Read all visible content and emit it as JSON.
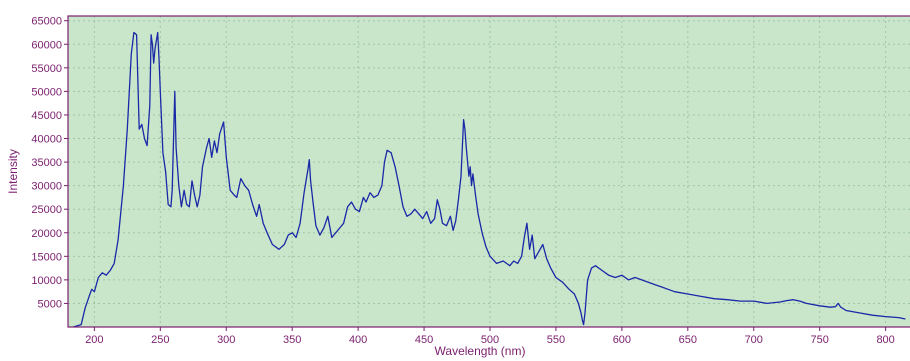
{
  "chart_data": {
    "type": "line",
    "title": "",
    "xlabel": "Wavelength (nm)",
    "ylabel": "Intensity",
    "xlim": [
      180,
      820
    ],
    "ylim": [
      0,
      66000
    ],
    "grid": true,
    "x_ticks": [
      200,
      250,
      300,
      350,
      400,
      450,
      500,
      550,
      600,
      650,
      700,
      750,
      800
    ],
    "y_ticks": [
      5000,
      10000,
      15000,
      20000,
      25000,
      30000,
      35000,
      40000,
      45000,
      50000,
      55000,
      60000,
      65000
    ],
    "colors": {
      "background": "#ffffff",
      "plot_area": "#c9e6ca",
      "frame": "#7a1f6e",
      "tick_text": "#7a1f6e",
      "grid": "#9fc6a6",
      "line": "#1a28a8"
    },
    "series": [
      {
        "values": [
          [
            184,
            0
          ],
          [
            190,
            500
          ],
          [
            193,
            4000
          ],
          [
            196,
            6500
          ],
          [
            198,
            8000
          ],
          [
            200,
            7500
          ],
          [
            203,
            10500
          ],
          [
            206,
            11500
          ],
          [
            209,
            11000
          ],
          [
            212,
            12000
          ],
          [
            215,
            13500
          ],
          [
            218,
            18500
          ],
          [
            222,
            30000
          ],
          [
            225,
            42000
          ],
          [
            228,
            58000
          ],
          [
            230,
            62500
          ],
          [
            232,
            62000
          ],
          [
            234,
            42000
          ],
          [
            236,
            43000
          ],
          [
            238,
            40000
          ],
          [
            240,
            38500
          ],
          [
            242,
            47000
          ],
          [
            243,
            62000
          ],
          [
            244,
            60000
          ],
          [
            245,
            56000
          ],
          [
            246,
            59000
          ],
          [
            248,
            62500
          ],
          [
            249,
            57000
          ],
          [
            250,
            50000
          ],
          [
            252,
            37000
          ],
          [
            254,
            33000
          ],
          [
            256,
            26000
          ],
          [
            258,
            25500
          ],
          [
            259,
            29000
          ],
          [
            261,
            50000
          ],
          [
            262,
            38000
          ],
          [
            264,
            30000
          ],
          [
            266,
            25500
          ],
          [
            268,
            29000
          ],
          [
            270,
            26000
          ],
          [
            272,
            25500
          ],
          [
            274,
            31000
          ],
          [
            276,
            28000
          ],
          [
            278,
            25500
          ],
          [
            280,
            28000
          ],
          [
            282,
            34000
          ],
          [
            285,
            38000
          ],
          [
            287,
            40000
          ],
          [
            289,
            36000
          ],
          [
            291,
            39500
          ],
          [
            293,
            37000
          ],
          [
            295,
            41000
          ],
          [
            298,
            43500
          ],
          [
            300,
            36000
          ],
          [
            303,
            29000
          ],
          [
            306,
            28000
          ],
          [
            308,
            27500
          ],
          [
            311,
            31500
          ],
          [
            314,
            30000
          ],
          [
            317,
            29000
          ],
          [
            320,
            26000
          ],
          [
            323,
            23500
          ],
          [
            325,
            26000
          ],
          [
            328,
            22000
          ],
          [
            331,
            20000
          ],
          [
            335,
            17500
          ],
          [
            340,
            16500
          ],
          [
            344,
            17500
          ],
          [
            347,
            19500
          ],
          [
            350,
            20000
          ],
          [
            353,
            19000
          ],
          [
            356,
            22000
          ],
          [
            359,
            28500
          ],
          [
            362,
            33500
          ],
          [
            363,
            35500
          ],
          [
            364,
            31000
          ],
          [
            366,
            26000
          ],
          [
            368,
            21500
          ],
          [
            371,
            19500
          ],
          [
            374,
            21000
          ],
          [
            377,
            23500
          ],
          [
            380,
            19000
          ],
          [
            383,
            20000
          ],
          [
            386,
            21000
          ],
          [
            389,
            22000
          ],
          [
            392,
            25500
          ],
          [
            395,
            26500
          ],
          [
            398,
            25000
          ],
          [
            401,
            24500
          ],
          [
            404,
            27500
          ],
          [
            406,
            26500
          ],
          [
            409,
            28500
          ],
          [
            412,
            27500
          ],
          [
            415,
            28000
          ],
          [
            418,
            30000
          ],
          [
            420,
            35000
          ],
          [
            422,
            37500
          ],
          [
            425,
            37000
          ],
          [
            428,
            34000
          ],
          [
            431,
            30000
          ],
          [
            434,
            25500
          ],
          [
            437,
            23500
          ],
          [
            440,
            24000
          ],
          [
            443,
            25000
          ],
          [
            446,
            24000
          ],
          [
            449,
            23000
          ],
          [
            452,
            24500
          ],
          [
            455,
            22000
          ],
          [
            458,
            23000
          ],
          [
            460,
            27000
          ],
          [
            462,
            25000
          ],
          [
            464,
            22000
          ],
          [
            467,
            21500
          ],
          [
            470,
            23500
          ],
          [
            472,
            20500
          ],
          [
            474,
            22500
          ],
          [
            476,
            27000
          ],
          [
            478,
            32000
          ],
          [
            479,
            38000
          ],
          [
            480,
            44000
          ],
          [
            481,
            42000
          ],
          [
            482,
            38000
          ],
          [
            484,
            32000
          ],
          [
            485,
            34000
          ],
          [
            486,
            30000
          ],
          [
            487,
            32500
          ],
          [
            489,
            28000
          ],
          [
            491,
            24000
          ],
          [
            494,
            20000
          ],
          [
            497,
            17000
          ],
          [
            500,
            15000
          ],
          [
            505,
            13500
          ],
          [
            510,
            14000
          ],
          [
            515,
            13000
          ],
          [
            518,
            14000
          ],
          [
            521,
            13500
          ],
          [
            524,
            15000
          ],
          [
            526,
            19000
          ],
          [
            528,
            22000
          ],
          [
            530,
            16500
          ],
          [
            532,
            19500
          ],
          [
            534,
            14500
          ],
          [
            537,
            16000
          ],
          [
            540,
            17500
          ],
          [
            543,
            14500
          ],
          [
            546,
            12500
          ],
          [
            550,
            10500
          ],
          [
            555,
            9500
          ],
          [
            560,
            8000
          ],
          [
            564,
            7000
          ],
          [
            567,
            5000
          ],
          [
            569,
            3000
          ],
          [
            570,
            1500
          ],
          [
            571,
            500
          ],
          [
            572,
            3000
          ],
          [
            574,
            10000
          ],
          [
            577,
            12500
          ],
          [
            580,
            13000
          ],
          [
            585,
            12000
          ],
          [
            590,
            11000
          ],
          [
            595,
            10500
          ],
          [
            600,
            11000
          ],
          [
            605,
            10000
          ],
          [
            610,
            10500
          ],
          [
            615,
            10000
          ],
          [
            620,
            9500
          ],
          [
            625,
            9000
          ],
          [
            630,
            8500
          ],
          [
            635,
            8000
          ],
          [
            640,
            7500
          ],
          [
            650,
            7000
          ],
          [
            660,
            6500
          ],
          [
            670,
            6000
          ],
          [
            680,
            5800
          ],
          [
            690,
            5500
          ],
          [
            700,
            5500
          ],
          [
            710,
            5000
          ],
          [
            720,
            5300
          ],
          [
            725,
            5600
          ],
          [
            730,
            5800
          ],
          [
            735,
            5500
          ],
          [
            740,
            5000
          ],
          [
            750,
            4500
          ],
          [
            758,
            4200
          ],
          [
            762,
            4300
          ],
          [
            764,
            5000
          ],
          [
            766,
            4200
          ],
          [
            770,
            3500
          ],
          [
            780,
            3000
          ],
          [
            790,
            2500
          ],
          [
            800,
            2200
          ],
          [
            810,
            2000
          ],
          [
            815,
            1700
          ]
        ]
      }
    ]
  }
}
